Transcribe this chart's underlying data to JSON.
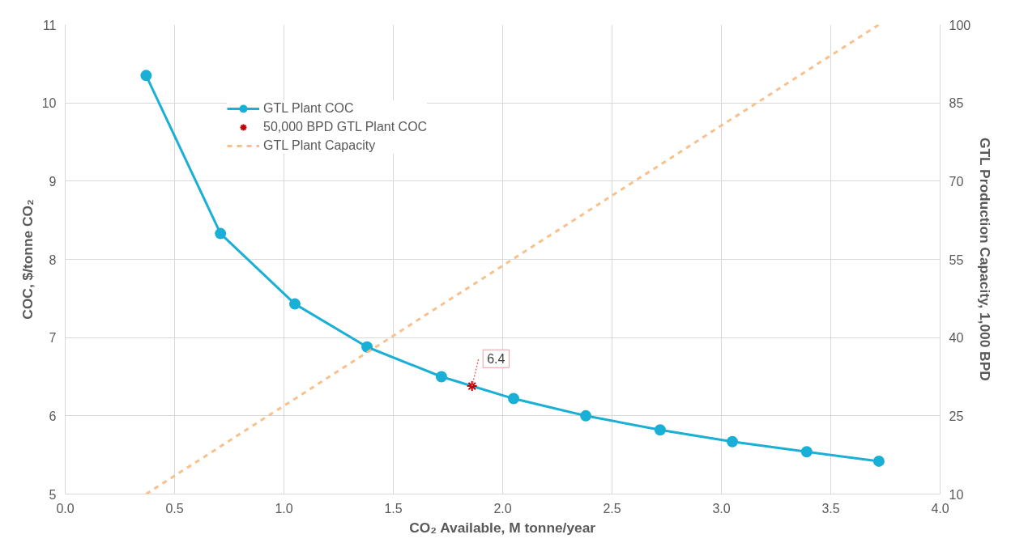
{
  "chart_data": {
    "type": "line",
    "xlabel": "CO₂ Available, M tonne/year",
    "ylabel": "COC, $/tonne CO₂",
    "y2label": "GTL Production Capacity, 1,000 BPD",
    "x": [
      0.37,
      0.71,
      1.05,
      1.38,
      1.72,
      2.05,
      2.38,
      2.72,
      3.05,
      3.39,
      3.72
    ],
    "series": [
      {
        "name": "GTL Plant COC",
        "color": "#1aafd6",
        "marker": "circle",
        "line_style": "solid",
        "values": [
          10.35,
          8.33,
          7.43,
          6.88,
          6.5,
          6.22,
          6.0,
          5.82,
          5.67,
          5.54,
          5.42
        ]
      },
      {
        "name": "50,000 BPD GTL Plant COC",
        "color": "#c00000",
        "type": "scatter",
        "marker": "cross",
        "x": [
          1.86
        ],
        "values": [
          6.38
        ]
      },
      {
        "name": "GTL Plant Capacity",
        "color": "#f8c08c",
        "type": "line",
        "marker": "none",
        "line_style": "dashed",
        "axis": "y2",
        "x": [
          0.37,
          3.72
        ],
        "values": [
          10,
          100
        ]
      }
    ],
    "xlim": [
      0,
      4
    ],
    "xticks": [
      {
        "value": 0,
        "label": "0.0"
      },
      {
        "value": 0.5,
        "label": "0.5"
      },
      {
        "value": 1,
        "label": "1.0"
      },
      {
        "value": 1.5,
        "label": "1.5"
      },
      {
        "value": 2,
        "label": "2.0"
      },
      {
        "value": 2.5,
        "label": "2.5"
      },
      {
        "value": 3,
        "label": "3.0"
      },
      {
        "value": 3.5,
        "label": "3.5"
      },
      {
        "value": 4,
        "label": "4.0"
      }
    ],
    "ylim": [
      5,
      11
    ],
    "yticks": [
      5,
      6,
      7,
      8,
      9,
      10,
      11
    ],
    "y2lim": [
      10,
      100
    ],
    "y2ticks": [
      10,
      25,
      40,
      55,
      70,
      85,
      100
    ],
    "annotations": [
      {
        "text": "6.4",
        "x": 1.86,
        "y": 6.38
      }
    ],
    "grid": true,
    "legend": "top left"
  }
}
